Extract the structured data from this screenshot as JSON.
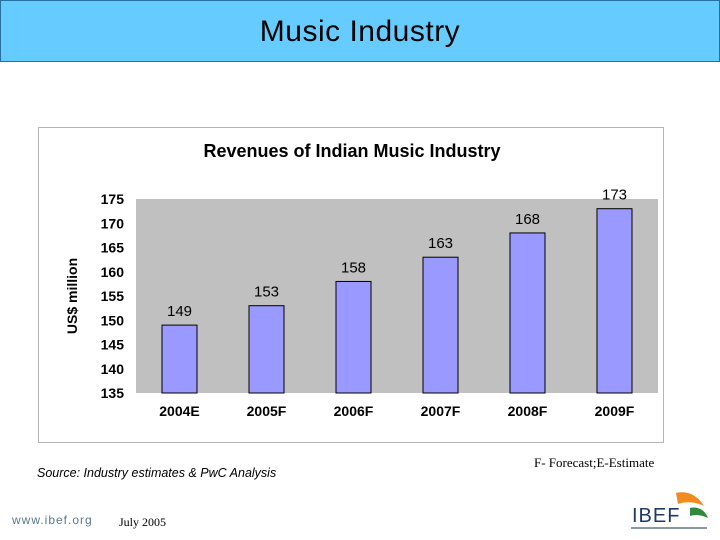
{
  "slide": {
    "title": "Music Industry",
    "source_note": "Source: Industry estimates & PwC Analysis",
    "legend_note": "F- Forecast;E-Estimate",
    "footer_url": "www.ibef.org",
    "footer_date": "July 2005",
    "logo_text": "IBEF"
  },
  "colors": {
    "title_bar": "#66ccff",
    "plot_bg": "#c0c0c0",
    "bar_fill": "#9999ff",
    "bar_stroke": "#000000",
    "logo_orange": "#f08c1e",
    "logo_green": "#2e8b3a"
  },
  "chart_data": {
    "type": "bar",
    "title": "Revenues of Indian Music Industry",
    "xlabel": "",
    "ylabel": "US$ million",
    "categories": [
      "2004E",
      "2005F",
      "2006F",
      "2007F",
      "2008F",
      "2009F"
    ],
    "values": [
      149,
      153,
      158,
      163,
      168,
      173
    ],
    "data_labels": [
      "149",
      "153",
      "158",
      "163",
      "168",
      "173"
    ],
    "ylim": [
      135,
      175
    ],
    "yticks": [
      135,
      140,
      145,
      150,
      155,
      160,
      165,
      170,
      175
    ],
    "grid": false,
    "legend": "none"
  }
}
